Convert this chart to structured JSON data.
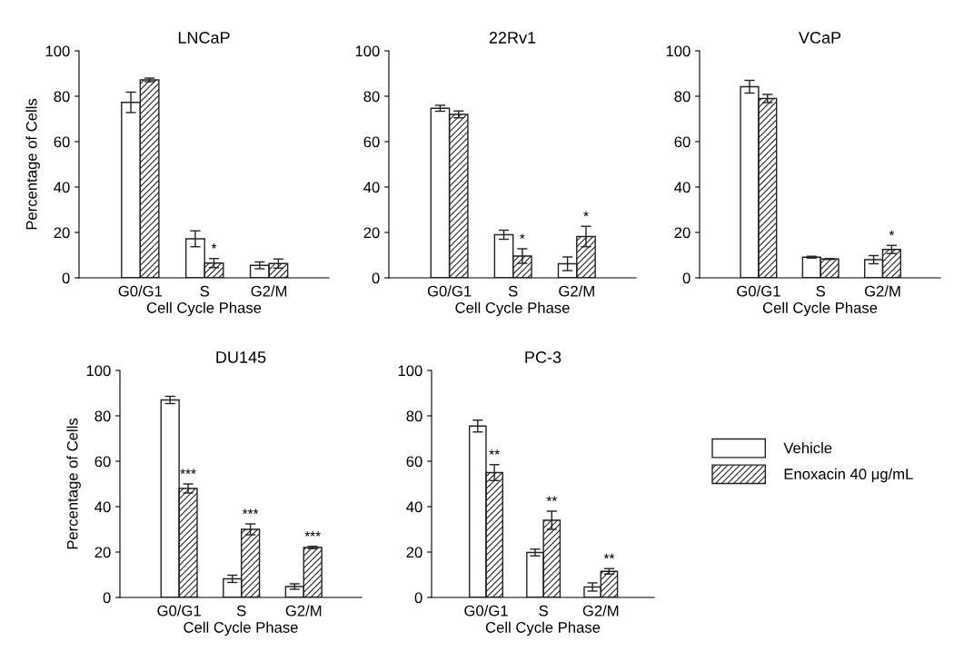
{
  "chart_data": [
    {
      "type": "bar",
      "title": "LNCaP",
      "xlabel": "Cell Cycle Phase",
      "ylabel": "Percentage of Cells",
      "categories": [
        "G0/G1",
        "S",
        "G2/M"
      ],
      "ylim": [
        0,
        100
      ],
      "yticks": [
        0,
        20,
        40,
        60,
        80,
        100
      ],
      "grid": false,
      "legend": false,
      "series": [
        {
          "color": "#ffffff",
          "values": [
            77.3,
            17.2,
            5.5
          ],
          "errors": [
            4.5,
            3.5,
            1.5
          ]
        },
        {
          "color": "#222222",
          "values": [
            87.2,
            6.5,
            6.3
          ],
          "errors": [
            0.8,
            2.0,
            2.0
          ]
        }
      ],
      "annotations": [
        {
          "text": "*",
          "x": "S",
          "y": 6.5
        }
      ]
    },
    {
      "type": "bar",
      "title": "22Rv1",
      "xlabel": "Cell Cycle Phase",
      "categories": [
        "G0/G1",
        "S",
        "G2/M"
      ],
      "ylim": [
        0,
        100
      ],
      "yticks": [
        0,
        20,
        40,
        60,
        80,
        100
      ],
      "grid": false,
      "legend": false,
      "series": [
        {
          "color": "#ffffff",
          "values": [
            74.7,
            19.0,
            6.2
          ],
          "errors": [
            1.3,
            2.0,
            3.0
          ]
        },
        {
          "color": "#222222",
          "values": [
            72.0,
            9.6,
            18.2
          ],
          "errors": [
            1.5,
            3.2,
            4.5
          ]
        }
      ],
      "annotations": [
        {
          "text": "*",
          "x": "S",
          "y": 9.6
        },
        {
          "text": "*",
          "x": "G2/M",
          "y": 18.2
        }
      ]
    },
    {
      "type": "bar",
      "title": "VCaP",
      "xlabel": "Cell Cycle Phase",
      "categories": [
        "G0/G1",
        "S",
        "G2/M"
      ],
      "ylim": [
        0,
        100
      ],
      "yticks": [
        0,
        20,
        40,
        60,
        80,
        100
      ],
      "grid": false,
      "legend": false,
      "series": [
        {
          "color": "#ffffff",
          "values": [
            84.2,
            9.1,
            8.0
          ],
          "errors": [
            2.8,
            0.4,
            1.8
          ]
        },
        {
          "color": "#222222",
          "values": [
            79.0,
            8.3,
            12.5
          ],
          "errors": [
            1.8,
            0.2,
            1.8
          ]
        }
      ],
      "annotations": [
        {
          "text": "*",
          "x": "G2/M",
          "y": 12.5
        }
      ]
    },
    {
      "type": "bar",
      "title": "DU145",
      "xlabel": "Cell Cycle Phase",
      "ylabel": "Percentage of Cells",
      "categories": [
        "G0/G1",
        "S",
        "G2/M"
      ],
      "ylim": [
        0,
        100
      ],
      "yticks": [
        0,
        20,
        40,
        60,
        80,
        100
      ],
      "grid": false,
      "legend": false,
      "series": [
        {
          "color": "#ffffff",
          "values": [
            87.0,
            8.2,
            4.8
          ],
          "errors": [
            1.6,
            1.6,
            1.2
          ]
        },
        {
          "color": "#222222",
          "values": [
            48.0,
            30.0,
            22.0
          ],
          "errors": [
            2.0,
            2.4,
            0.5
          ]
        }
      ],
      "annotations": [
        {
          "text": "***",
          "x": "G0/G1",
          "y": 48.0
        },
        {
          "text": "***",
          "x": "S",
          "y": 30.0
        },
        {
          "text": "***",
          "x": "G2/M",
          "y": 22.0
        }
      ]
    },
    {
      "type": "bar",
      "title": "PC-3",
      "xlabel": "Cell Cycle Phase",
      "categories": [
        "G0/G1",
        "S",
        "G2/M"
      ],
      "ylim": [
        0,
        100
      ],
      "yticks": [
        0,
        20,
        40,
        60,
        80,
        100
      ],
      "grid": false,
      "legend": "right",
      "series": [
        {
          "name": "Vehicle",
          "color": "#ffffff",
          "values": [
            75.5,
            19.8,
            4.6
          ],
          "errors": [
            2.6,
            1.5,
            1.8
          ]
        },
        {
          "name": "Enoxacin 40 μg/mL",
          "color": "#222222",
          "values": [
            55.0,
            34.0,
            11.5
          ],
          "errors": [
            3.5,
            4.0,
            1.2
          ]
        }
      ],
      "annotations": [
        {
          "text": "**",
          "x": "G0/G1",
          "y": 55.0
        },
        {
          "text": "**",
          "x": "S",
          "y": 34.0
        },
        {
          "text": "**",
          "x": "G2/M",
          "y": 11.5
        }
      ]
    }
  ]
}
